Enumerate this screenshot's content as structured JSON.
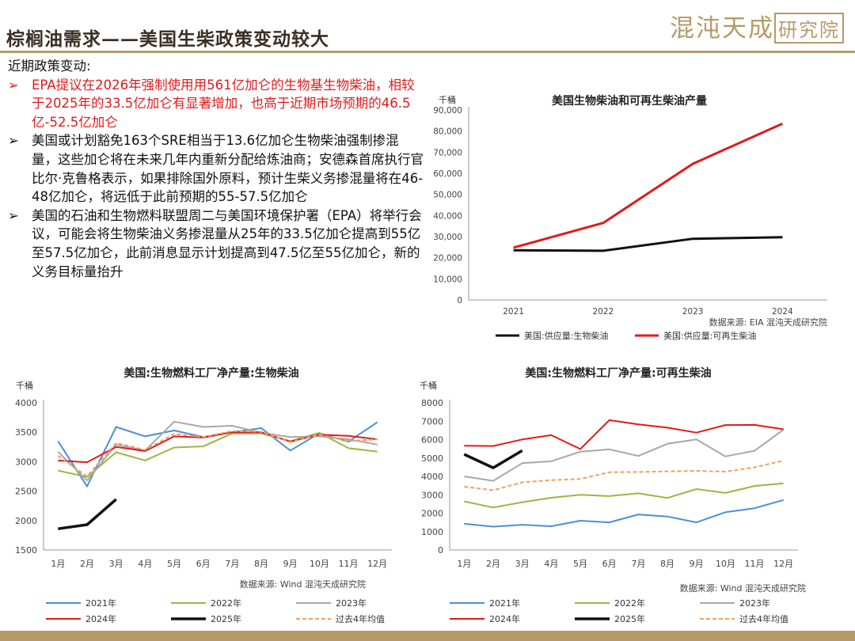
{
  "header": {
    "title": "棕榈油需求——美国生柴政策变动较大",
    "logo_main": "混沌天成",
    "logo_box": "研究院"
  },
  "text": {
    "intro": "近期政策变动:",
    "bullets": [
      {
        "text": "EPA提议在2026年强制使用用561亿加仑的生物基生物柴油，相较于2025年的33.5亿加仑有显著增加，也高于近期市场预期的46.5亿-52.5亿加仑",
        "color": "#e01b1b"
      },
      {
        "text": "美国或计划豁免163个SRE相当于13.6亿加仑生物柴油强制掺混量，这些加仑将在未来几年内重新分配给炼油商；安德森首席执行官比尔·克鲁格表示，如果排除国外原料，预计生柴义务掺混量将在46-48亿加仑，将远低于此前预期的55-57.5亿加仑",
        "color": "#111111"
      },
      {
        "text": "美国的石油和生物燃料联盟周二与美国环境保护署（EPA）将举行会议，可能会将生物柴油义务掺混量从25年的33.5亿加仑提高到55亿至57.5亿加仑，此前消息显示计划提高到47.5亿至55亿加仑，新的义务目标量抬升",
        "color": "#111111"
      }
    ]
  },
  "chart_data": [
    {
      "type": "line",
      "title": "美国生物柴油和可再生柴油产量",
      "ylabel": "千桶",
      "x": [
        "2021",
        "2022",
        "2023",
        "2024"
      ],
      "ylim": [
        0,
        90000
      ],
      "yticks": [
        "0",
        "10,000",
        "20,000",
        "30,000",
        "40,000",
        "50,000",
        "60,000",
        "70,000",
        "80,000",
        "90,000"
      ],
      "series": [
        {
          "name": "美国:供应量:生物柴油",
          "color": "#111111",
          "values": [
            23500,
            23300,
            29000,
            29700
          ]
        },
        {
          "name": "美国:供应量:可再生柴油",
          "color": "#e01b1b",
          "values": [
            24800,
            36500,
            64500,
            83500
          ]
        }
      ],
      "source": "数据来源: EIA  混沌天成研究院",
      "legend": "bottom"
    },
    {
      "type": "line",
      "title": "美国:生物燃料工厂净产量:生物柴油",
      "ylabel": "千桶",
      "categories": [
        "1月",
        "2月",
        "3月",
        "4月",
        "5月",
        "6月",
        "7月",
        "8月",
        "9月",
        "10月",
        "11月",
        "12月"
      ],
      "ylim": [
        1500,
        4000
      ],
      "yticks": [
        "1500",
        "2000",
        "2500",
        "3000",
        "3500",
        "4000"
      ],
      "series": [
        {
          "name": "2021年",
          "color": "#4a90d9",
          "dash": "none",
          "values": [
            3350,
            2580,
            3590,
            3430,
            3530,
            3420,
            3500,
            3570,
            3190,
            3480,
            3340,
            3670
          ]
        },
        {
          "name": "2022年",
          "color": "#9ab83f",
          "dash": "none",
          "values": [
            2850,
            2740,
            3160,
            3020,
            3240,
            3260,
            3480,
            3480,
            3350,
            3490,
            3230,
            3170
          ]
        },
        {
          "name": "2023年",
          "color": "#a8a8a8",
          "dash": "none",
          "values": [
            3170,
            2680,
            3290,
            3190,
            3680,
            3590,
            3610,
            3490,
            3420,
            3430,
            3380,
            3290
          ]
        },
        {
          "name": "2024年",
          "color": "#e01b1b",
          "dash": "none",
          "values": [
            3020,
            2990,
            3250,
            3180,
            3430,
            3410,
            3500,
            3500,
            3340,
            3460,
            3440,
            3380
          ]
        },
        {
          "name": "2025年",
          "color": "#111111",
          "dash": "none",
          "values": [
            1860,
            1930,
            2360,
            null,
            null,
            null,
            null,
            null,
            null,
            null,
            null,
            null
          ]
        },
        {
          "name": "过去4年均值",
          "color": "#f0a060",
          "dash": "5,3",
          "values": [
            3100,
            2750,
            3320,
            3200,
            3470,
            3420,
            3520,
            3510,
            3330,
            3460,
            3350,
            3380
          ]
        }
      ],
      "source": "数据来源: Wind  混沌天成研究院",
      "legend": "bottom"
    },
    {
      "type": "line",
      "title": "美国:生物燃料工厂净产量:可再生柴油",
      "ylabel": "千桶",
      "categories": [
        "1月",
        "2月",
        "3月",
        "4月",
        "5月",
        "6月",
        "7月",
        "8月",
        "9月",
        "10月",
        "11月",
        "12月"
      ],
      "ylim": [
        0,
        8000
      ],
      "yticks": [
        "0",
        "1000",
        "2000",
        "3000",
        "4000",
        "5000",
        "6000",
        "7000",
        "8000"
      ],
      "series": [
        {
          "name": "2021年",
          "color": "#4a90d9",
          "dash": "none",
          "values": [
            1430,
            1270,
            1370,
            1290,
            1590,
            1500,
            1930,
            1820,
            1500,
            2050,
            2270,
            2720
          ]
        },
        {
          "name": "2022年",
          "color": "#9ab83f",
          "dash": "none",
          "values": [
            2640,
            2310,
            2600,
            2840,
            3000,
            2930,
            3080,
            2830,
            3310,
            3100,
            3480,
            3620
          ]
        },
        {
          "name": "2023年",
          "color": "#a8a8a8",
          "dash": "none",
          "values": [
            4000,
            3760,
            4720,
            4820,
            5340,
            5470,
            5110,
            5770,
            6010,
            5090,
            5390,
            6540
          ]
        },
        {
          "name": "2024年",
          "color": "#e01b1b",
          "dash": "none",
          "values": [
            5670,
            5650,
            6010,
            6240,
            5490,
            7060,
            6830,
            6650,
            6380,
            6790,
            6800,
            6560
          ]
        },
        {
          "name": "2025年",
          "color": "#111111",
          "dash": "none",
          "values": [
            5200,
            4470,
            5400,
            null,
            null,
            null,
            null,
            null,
            null,
            null,
            null,
            null
          ]
        },
        {
          "name": "过去4年均值",
          "color": "#f0a060",
          "dash": "5,3",
          "values": [
            3440,
            3250,
            3680,
            3800,
            3860,
            4230,
            4240,
            4270,
            4300,
            4260,
            4490,
            4860
          ]
        }
      ],
      "source": "数据来源: Wind  混沌天成研究院",
      "legend": "bottom"
    }
  ]
}
